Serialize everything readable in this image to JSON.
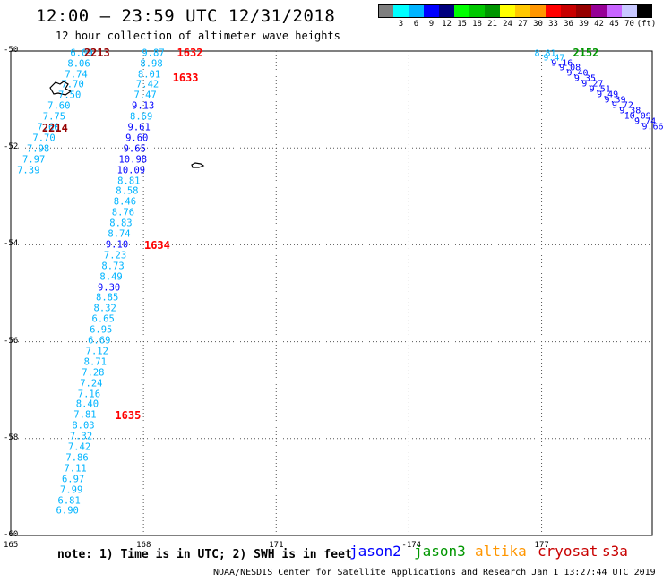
{
  "header": {
    "title": "12:00 – 23:59 UTC 12/31/2018",
    "subtitle": "12 hour collection of altimeter wave heights"
  },
  "colorbar": {
    "unit": "(ft)",
    "colors": [
      "#7f7f7f",
      "#00ffff",
      "#00b4ff",
      "#0000ff",
      "#00007f",
      "#00ff00",
      "#00c800",
      "#009600",
      "#ffff00",
      "#ffc800",
      "#ff9600",
      "#ff0000",
      "#c80000",
      "#960000",
      "#960096",
      "#c864ff",
      "#c8c8ff",
      "#000000"
    ],
    "labels": [
      "3",
      "6",
      "9",
      "12",
      "15",
      "18",
      "21",
      "24",
      "27",
      "30",
      "33",
      "36",
      "39",
      "42",
      "45",
      "70"
    ]
  },
  "map": {
    "lon_ticks": [
      {
        "v": 165,
        "label": "165"
      },
      {
        "v": 168,
        "label": "168"
      },
      {
        "v": 171,
        "label": "171"
      },
      {
        "v": 174,
        "label": "-174"
      },
      {
        "v": 177,
        "label": "177"
      }
    ],
    "lat_ticks": [
      {
        "v": -50,
        "label": "-50"
      },
      {
        "v": -52,
        "label": "-52"
      },
      {
        "v": -54,
        "label": "-54"
      },
      {
        "v": -56,
        "label": "-56"
      },
      {
        "v": -58,
        "label": "-58"
      },
      {
        "v": -60,
        "label": "-60"
      }
    ],
    "left_track": [
      {
        "v": "6.09",
        "lon": 166.6,
        "lat": -50.05,
        "c": "#00b4ff"
      },
      {
        "v": "8.06",
        "lon": 166.54,
        "lat": -50.27,
        "c": "#00b4ff"
      },
      {
        "v": "7.74",
        "lon": 166.48,
        "lat": -50.49,
        "c": "#00b4ff"
      },
      {
        "v": "7.70",
        "lon": 166.4,
        "lat": -50.71,
        "c": "#00b4ff"
      },
      {
        "v": "7.50",
        "lon": 166.33,
        "lat": -50.93,
        "c": "#00b4ff"
      },
      {
        "v": "7.60",
        "lon": 166.09,
        "lat": -51.15,
        "c": "#00b4ff"
      },
      {
        "v": "7.75",
        "lon": 165.98,
        "lat": -51.37,
        "c": "#00b4ff"
      },
      {
        "v": "7.60",
        "lon": 165.85,
        "lat": -51.59,
        "c": "#00b4ff"
      },
      {
        "v": "7.70",
        "lon": 165.75,
        "lat": -51.81,
        "c": "#00b4ff"
      },
      {
        "v": "7.98",
        "lon": 165.62,
        "lat": -52.03,
        "c": "#00b4ff"
      },
      {
        "v": "7.97",
        "lon": 165.52,
        "lat": -52.25,
        "c": "#00b4ff"
      },
      {
        "v": "7.39",
        "lon": 165.4,
        "lat": -52.47,
        "c": "#00b4ff"
      }
    ],
    "right_track": [
      {
        "v": "9.87",
        "lon": 168.22,
        "lat": -50.05,
        "c": "#00b4ff"
      },
      {
        "v": "8.98",
        "lon": 168.18,
        "lat": -50.27,
        "c": "#00b4ff"
      },
      {
        "v": "8.01",
        "lon": 168.13,
        "lat": -50.49,
        "c": "#00b4ff"
      },
      {
        "v": "7.42",
        "lon": 168.09,
        "lat": -50.71,
        "c": "#00b4ff"
      },
      {
        "v": "7.47",
        "lon": 168.04,
        "lat": -50.93,
        "c": "#00b4ff"
      },
      {
        "v": "9.13",
        "lon": 167.99,
        "lat": -51.15,
        "c": "#0000ff"
      },
      {
        "v": "8.69",
        "lon": 167.95,
        "lat": -51.37,
        "c": "#00b4ff"
      },
      {
        "v": "9.61",
        "lon": 167.9,
        "lat": -51.59,
        "c": "#0000ff"
      },
      {
        "v": "9.60",
        "lon": 167.85,
        "lat": -51.81,
        "c": "#0000ff"
      },
      {
        "v": "9.65",
        "lon": 167.8,
        "lat": -52.03,
        "c": "#0000ff"
      },
      {
        "v": "10.98",
        "lon": 167.76,
        "lat": -52.25,
        "c": "#0000ff"
      },
      {
        "v": "10.09",
        "lon": 167.72,
        "lat": -52.47,
        "c": "#0000ff"
      },
      {
        "v": "8.81",
        "lon": 167.67,
        "lat": -52.69,
        "c": "#00b4ff"
      },
      {
        "v": "8.58",
        "lon": 167.63,
        "lat": -52.91,
        "c": "#00b4ff"
      },
      {
        "v": "8.46",
        "lon": 167.58,
        "lat": -53.13,
        "c": "#00b4ff"
      },
      {
        "v": "8.76",
        "lon": 167.54,
        "lat": -53.35,
        "c": "#00b4ff"
      },
      {
        "v": "8.83",
        "lon": 167.49,
        "lat": -53.57,
        "c": "#00b4ff"
      },
      {
        "v": "8.74",
        "lon": 167.45,
        "lat": -53.79,
        "c": "#00b4ff"
      },
      {
        "v": "9.10",
        "lon": 167.4,
        "lat": -54.01,
        "c": "#0000ff"
      },
      {
        "v": "7.23",
        "lon": 167.36,
        "lat": -54.23,
        "c": "#00b4ff"
      },
      {
        "v": "8.73",
        "lon": 167.31,
        "lat": -54.45,
        "c": "#00b4ff"
      },
      {
        "v": "8.49",
        "lon": 167.27,
        "lat": -54.67,
        "c": "#00b4ff"
      },
      {
        "v": "9.30",
        "lon": 167.22,
        "lat": -54.89,
        "c": "#0000ff"
      },
      {
        "v": "8.85",
        "lon": 167.18,
        "lat": -55.11,
        "c": "#00b4ff"
      },
      {
        "v": "8.32",
        "lon": 167.13,
        "lat": -55.33,
        "c": "#00b4ff"
      },
      {
        "v": "6.65",
        "lon": 167.09,
        "lat": -55.55,
        "c": "#00b4ff"
      },
      {
        "v": "6.95",
        "lon": 167.04,
        "lat": -55.77,
        "c": "#00b4ff"
      },
      {
        "v": "6.69",
        "lon": 167.0,
        "lat": -55.99,
        "c": "#00b4ff"
      },
      {
        "v": "7.12",
        "lon": 166.95,
        "lat": -56.21,
        "c": "#00b4ff"
      },
      {
        "v": "8.71",
        "lon": 166.91,
        "lat": -56.43,
        "c": "#00b4ff"
      },
      {
        "v": "7.28",
        "lon": 166.86,
        "lat": -56.65,
        "c": "#00b4ff"
      },
      {
        "v": "7.24",
        "lon": 166.82,
        "lat": -56.87,
        "c": "#00b4ff"
      },
      {
        "v": "7.16",
        "lon": 166.77,
        "lat": -57.09,
        "c": "#00b4ff"
      },
      {
        "v": "8.40",
        "lon": 166.73,
        "lat": -57.31,
        "c": "#00b4ff"
      },
      {
        "v": "7.81",
        "lon": 166.68,
        "lat": -57.53,
        "c": "#00b4ff"
      },
      {
        "v": "8.03",
        "lon": 166.64,
        "lat": -57.75,
        "c": "#00b4ff"
      },
      {
        "v": "7.32",
        "lon": 166.59,
        "lat": -57.97,
        "c": "#00b4ff"
      },
      {
        "v": "7.42",
        "lon": 166.55,
        "lat": -58.19,
        "c": "#00b4ff"
      },
      {
        "v": "7.86",
        "lon": 166.5,
        "lat": -58.41,
        "c": "#00b4ff"
      },
      {
        "v": "7.11",
        "lon": 166.46,
        "lat": -58.63,
        "c": "#00b4ff"
      },
      {
        "v": "6.97",
        "lon": 166.41,
        "lat": -58.85,
        "c": "#00b4ff"
      },
      {
        "v": "7.99",
        "lon": 166.37,
        "lat": -59.07,
        "c": "#00b4ff"
      },
      {
        "v": "6.81",
        "lon": 166.32,
        "lat": -59.29,
        "c": "#00b4ff"
      },
      {
        "v": "6.90",
        "lon": 166.28,
        "lat": -59.51,
        "c": "#00b4ff"
      }
    ],
    "east_track": [
      {
        "v": "8.81",
        "lon": 177.08,
        "lat": -50.05,
        "c": "#00b4ff"
      },
      {
        "v": "9.47",
        "lon": 177.28,
        "lat": -50.15,
        "c": "#00b4ff"
      },
      {
        "v": "9.16",
        "lon": 177.46,
        "lat": -50.25,
        "c": "#0000ff"
      },
      {
        "v": "9.08",
        "lon": 177.64,
        "lat": -50.36,
        "c": "#0000ff"
      },
      {
        "v": "9.40",
        "lon": 177.81,
        "lat": -50.47,
        "c": "#0000ff"
      },
      {
        "v": "9.35",
        "lon": 177.98,
        "lat": -50.58,
        "c": "#0000ff"
      },
      {
        "v": "9.27",
        "lon": 178.15,
        "lat": -50.69,
        "c": "#0000ff"
      },
      {
        "v": "9.51",
        "lon": 178.32,
        "lat": -50.8,
        "c": "#0000ff"
      },
      {
        "v": "9.49",
        "lon": 178.49,
        "lat": -50.91,
        "c": "#0000ff"
      },
      {
        "v": "9.39",
        "lon": 178.66,
        "lat": -51.02,
        "c": "#0000ff"
      },
      {
        "v": "9.72",
        "lon": 178.83,
        "lat": -51.13,
        "c": "#0000ff"
      },
      {
        "v": "9.38",
        "lon": 179.0,
        "lat": -51.24,
        "c": "#0000ff"
      },
      {
        "v": "10.09",
        "lon": 179.17,
        "lat": -51.35,
        "c": "#0000ff"
      },
      {
        "v": "9.74",
        "lon": 179.34,
        "lat": -51.46,
        "c": "#0000ff"
      },
      {
        "v": "9.66",
        "lon": 179.51,
        "lat": -51.57,
        "c": "#0000ff"
      }
    ],
    "time_labels": [
      {
        "t": "2213",
        "lon": 166.95,
        "lat": -50.04,
        "c": "#960000"
      },
      {
        "t": "1632",
        "lon": 169.05,
        "lat": -50.04,
        "c": "#ff0000"
      },
      {
        "t": "1633",
        "lon": 168.95,
        "lat": -50.56,
        "c": "#ff0000"
      },
      {
        "t": "2214",
        "lon": 166.0,
        "lat": -51.59,
        "c": "#960000"
      },
      {
        "t": "1634",
        "lon": 168.31,
        "lat": -54.01,
        "c": "#ff0000"
      },
      {
        "t": "1635",
        "lon": 167.65,
        "lat": -57.53,
        "c": "#ff0000"
      },
      {
        "t": "2152",
        "lon": 178.0,
        "lat": -50.04,
        "c": "#009600"
      }
    ]
  },
  "note": "note: 1) Time is in UTC; 2) SWH is in feet",
  "satellites": [
    {
      "name": "jason2",
      "color": "#0000ff"
    },
    {
      "name": "jason3",
      "color": "#009600"
    },
    {
      "name": "altika",
      "color": "#ff9600"
    },
    {
      "name": "cryosat",
      "color": "#c80000"
    },
    {
      "name": "s3a",
      "color": "#c80000"
    }
  ],
  "footer": "NOAA/NESDIS Center for Satellite Applications and Research   Jan  1 13:27:44 UTC 2019"
}
